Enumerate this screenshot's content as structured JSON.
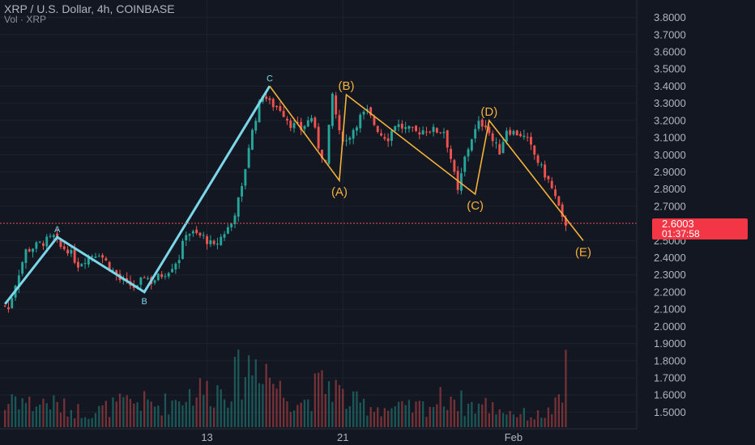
{
  "header": {
    "title": "XRP / U.S. Dollar, 4h, COINBASE",
    "volume_label": "Vol · XRP"
  },
  "colors": {
    "background": "#131722",
    "grid": "#1e222d",
    "text": "#b2b5be",
    "up": "#26a69a",
    "down": "#ef5350",
    "wave_cyan": "#7ad7e8",
    "wave_orange": "#f5b23a",
    "price_line": "#ef5350",
    "badge": "#f23645"
  },
  "chart_data": {
    "type": "candlestick",
    "xlabel": "",
    "ylabel": "",
    "ylim": [
      1.45,
      3.85
    ],
    "y_ticks": [
      "3.8000",
      "3.7000",
      "3.6000",
      "3.5000",
      "3.4000",
      "3.3000",
      "3.2000",
      "3.1000",
      "3.0000",
      "2.9000",
      "2.8000",
      "2.7000",
      "2.5000",
      "2.4000",
      "2.3000",
      "2.2000",
      "2.1000",
      "2.0000",
      "1.9000",
      "1.8000",
      "1.7000",
      "1.6000",
      "1.5000"
    ],
    "x_ticks": [
      {
        "label": "13",
        "bar": 58
      },
      {
        "label": "21",
        "bar": 97
      },
      {
        "label": "Feb",
        "bar": 146
      }
    ],
    "bar_count": 162,
    "current_price": {
      "value": 2.6003,
      "label": "2.6003",
      "countdown": "01:37:58"
    },
    "price_anchors": [
      [
        0,
        2.12
      ],
      [
        1,
        2.1
      ],
      [
        3,
        2.25
      ],
      [
        6,
        2.44
      ],
      [
        10,
        2.48
      ],
      [
        14,
        2.52
      ],
      [
        16,
        2.46
      ],
      [
        18,
        2.45
      ],
      [
        21,
        2.36
      ],
      [
        24,
        2.41
      ],
      [
        27,
        2.43
      ],
      [
        30,
        2.35
      ],
      [
        33,
        2.27
      ],
      [
        36,
        2.24
      ],
      [
        38,
        2.22
      ],
      [
        40,
        2.3
      ],
      [
        42,
        2.26
      ],
      [
        45,
        2.3
      ],
      [
        47,
        2.33
      ],
      [
        50,
        2.4
      ],
      [
        52,
        2.55
      ],
      [
        54,
        2.54
      ],
      [
        57,
        2.52
      ],
      [
        60,
        2.46
      ],
      [
        62,
        2.52
      ],
      [
        65,
        2.6
      ],
      [
        68,
        2.8
      ],
      [
        70,
        3.05
      ],
      [
        72,
        3.22
      ],
      [
        74,
        3.36
      ],
      [
        76,
        3.3
      ],
      [
        79,
        3.27
      ],
      [
        82,
        3.18
      ],
      [
        85,
        3.15
      ],
      [
        88,
        3.22
      ],
      [
        90,
        3.05
      ],
      [
        92,
        2.95
      ],
      [
        94,
        3.35
      ],
      [
        96,
        3.12
      ],
      [
        98,
        3.08
      ],
      [
        100,
        3.15
      ],
      [
        102,
        3.22
      ],
      [
        104,
        3.25
      ],
      [
        106,
        3.18
      ],
      [
        108,
        3.12
      ],
      [
        110,
        3.1
      ],
      [
        112,
        3.18
      ],
      [
        115,
        3.15
      ],
      [
        118,
        3.13
      ],
      [
        121,
        3.15
      ],
      [
        124,
        3.14
      ],
      [
        126,
        3.14
      ],
      [
        128,
        2.98
      ],
      [
        130,
        2.78
      ],
      [
        132,
        2.98
      ],
      [
        134,
        3.1
      ],
      [
        136,
        3.18
      ],
      [
        138,
        3.18
      ],
      [
        140,
        3.08
      ],
      [
        142,
        3.02
      ],
      [
        144,
        3.15
      ],
      [
        146,
        3.13
      ],
      [
        148,
        3.12
      ],
      [
        150,
        3.08
      ],
      [
        152,
        3.0
      ],
      [
        154,
        2.92
      ],
      [
        156,
        2.85
      ],
      [
        158,
        2.75
      ],
      [
        160,
        2.62
      ],
      [
        161,
        2.6
      ]
    ],
    "volume_anchors": [
      [
        0,
        0.25
      ],
      [
        2,
        0.45
      ],
      [
        8,
        0.3
      ],
      [
        12,
        0.35
      ],
      [
        18,
        0.25
      ],
      [
        25,
        0.2
      ],
      [
        32,
        0.3
      ],
      [
        38,
        0.35
      ],
      [
        44,
        0.3
      ],
      [
        48,
        0.35
      ],
      [
        52,
        0.45
      ],
      [
        56,
        0.5
      ],
      [
        60,
        0.5
      ],
      [
        64,
        0.55
      ],
      [
        68,
        0.75
      ],
      [
        72,
        0.9
      ],
      [
        74,
        1.0
      ],
      [
        76,
        0.7
      ],
      [
        80,
        0.45
      ],
      [
        86,
        0.35
      ],
      [
        90,
        0.55
      ],
      [
        94,
        0.6
      ],
      [
        98,
        0.35
      ],
      [
        104,
        0.3
      ],
      [
        110,
        0.25
      ],
      [
        116,
        0.25
      ],
      [
        122,
        0.3
      ],
      [
        128,
        0.45
      ],
      [
        132,
        0.3
      ],
      [
        138,
        0.3
      ],
      [
        146,
        0.2
      ],
      [
        152,
        0.15
      ],
      [
        156,
        0.2
      ],
      [
        160,
        0.35
      ],
      [
        161,
        0.95
      ]
    ],
    "annotations": {
      "cyan_wave": [
        {
          "label": "",
          "bar": 0,
          "price": 2.13
        },
        {
          "label": "A",
          "bar": 15,
          "price": 2.52
        },
        {
          "label": "B",
          "bar": 40,
          "price": 2.2
        },
        {
          "label": "C",
          "bar": 76,
          "price": 3.4
        }
      ],
      "orange_wave": [
        {
          "label": "",
          "bar": 76,
          "price": 3.4
        },
        {
          "label": "(A)",
          "bar": 96,
          "price": 2.85
        },
        {
          "label": "(B)",
          "bar": 98,
          "price": 3.35
        },
        {
          "label": "(C)",
          "bar": 135,
          "price": 2.77
        },
        {
          "label": "(D)",
          "bar": 139,
          "price": 3.2
        },
        {
          "label": "(E)",
          "bar": 166,
          "price": 2.5
        }
      ]
    }
  }
}
